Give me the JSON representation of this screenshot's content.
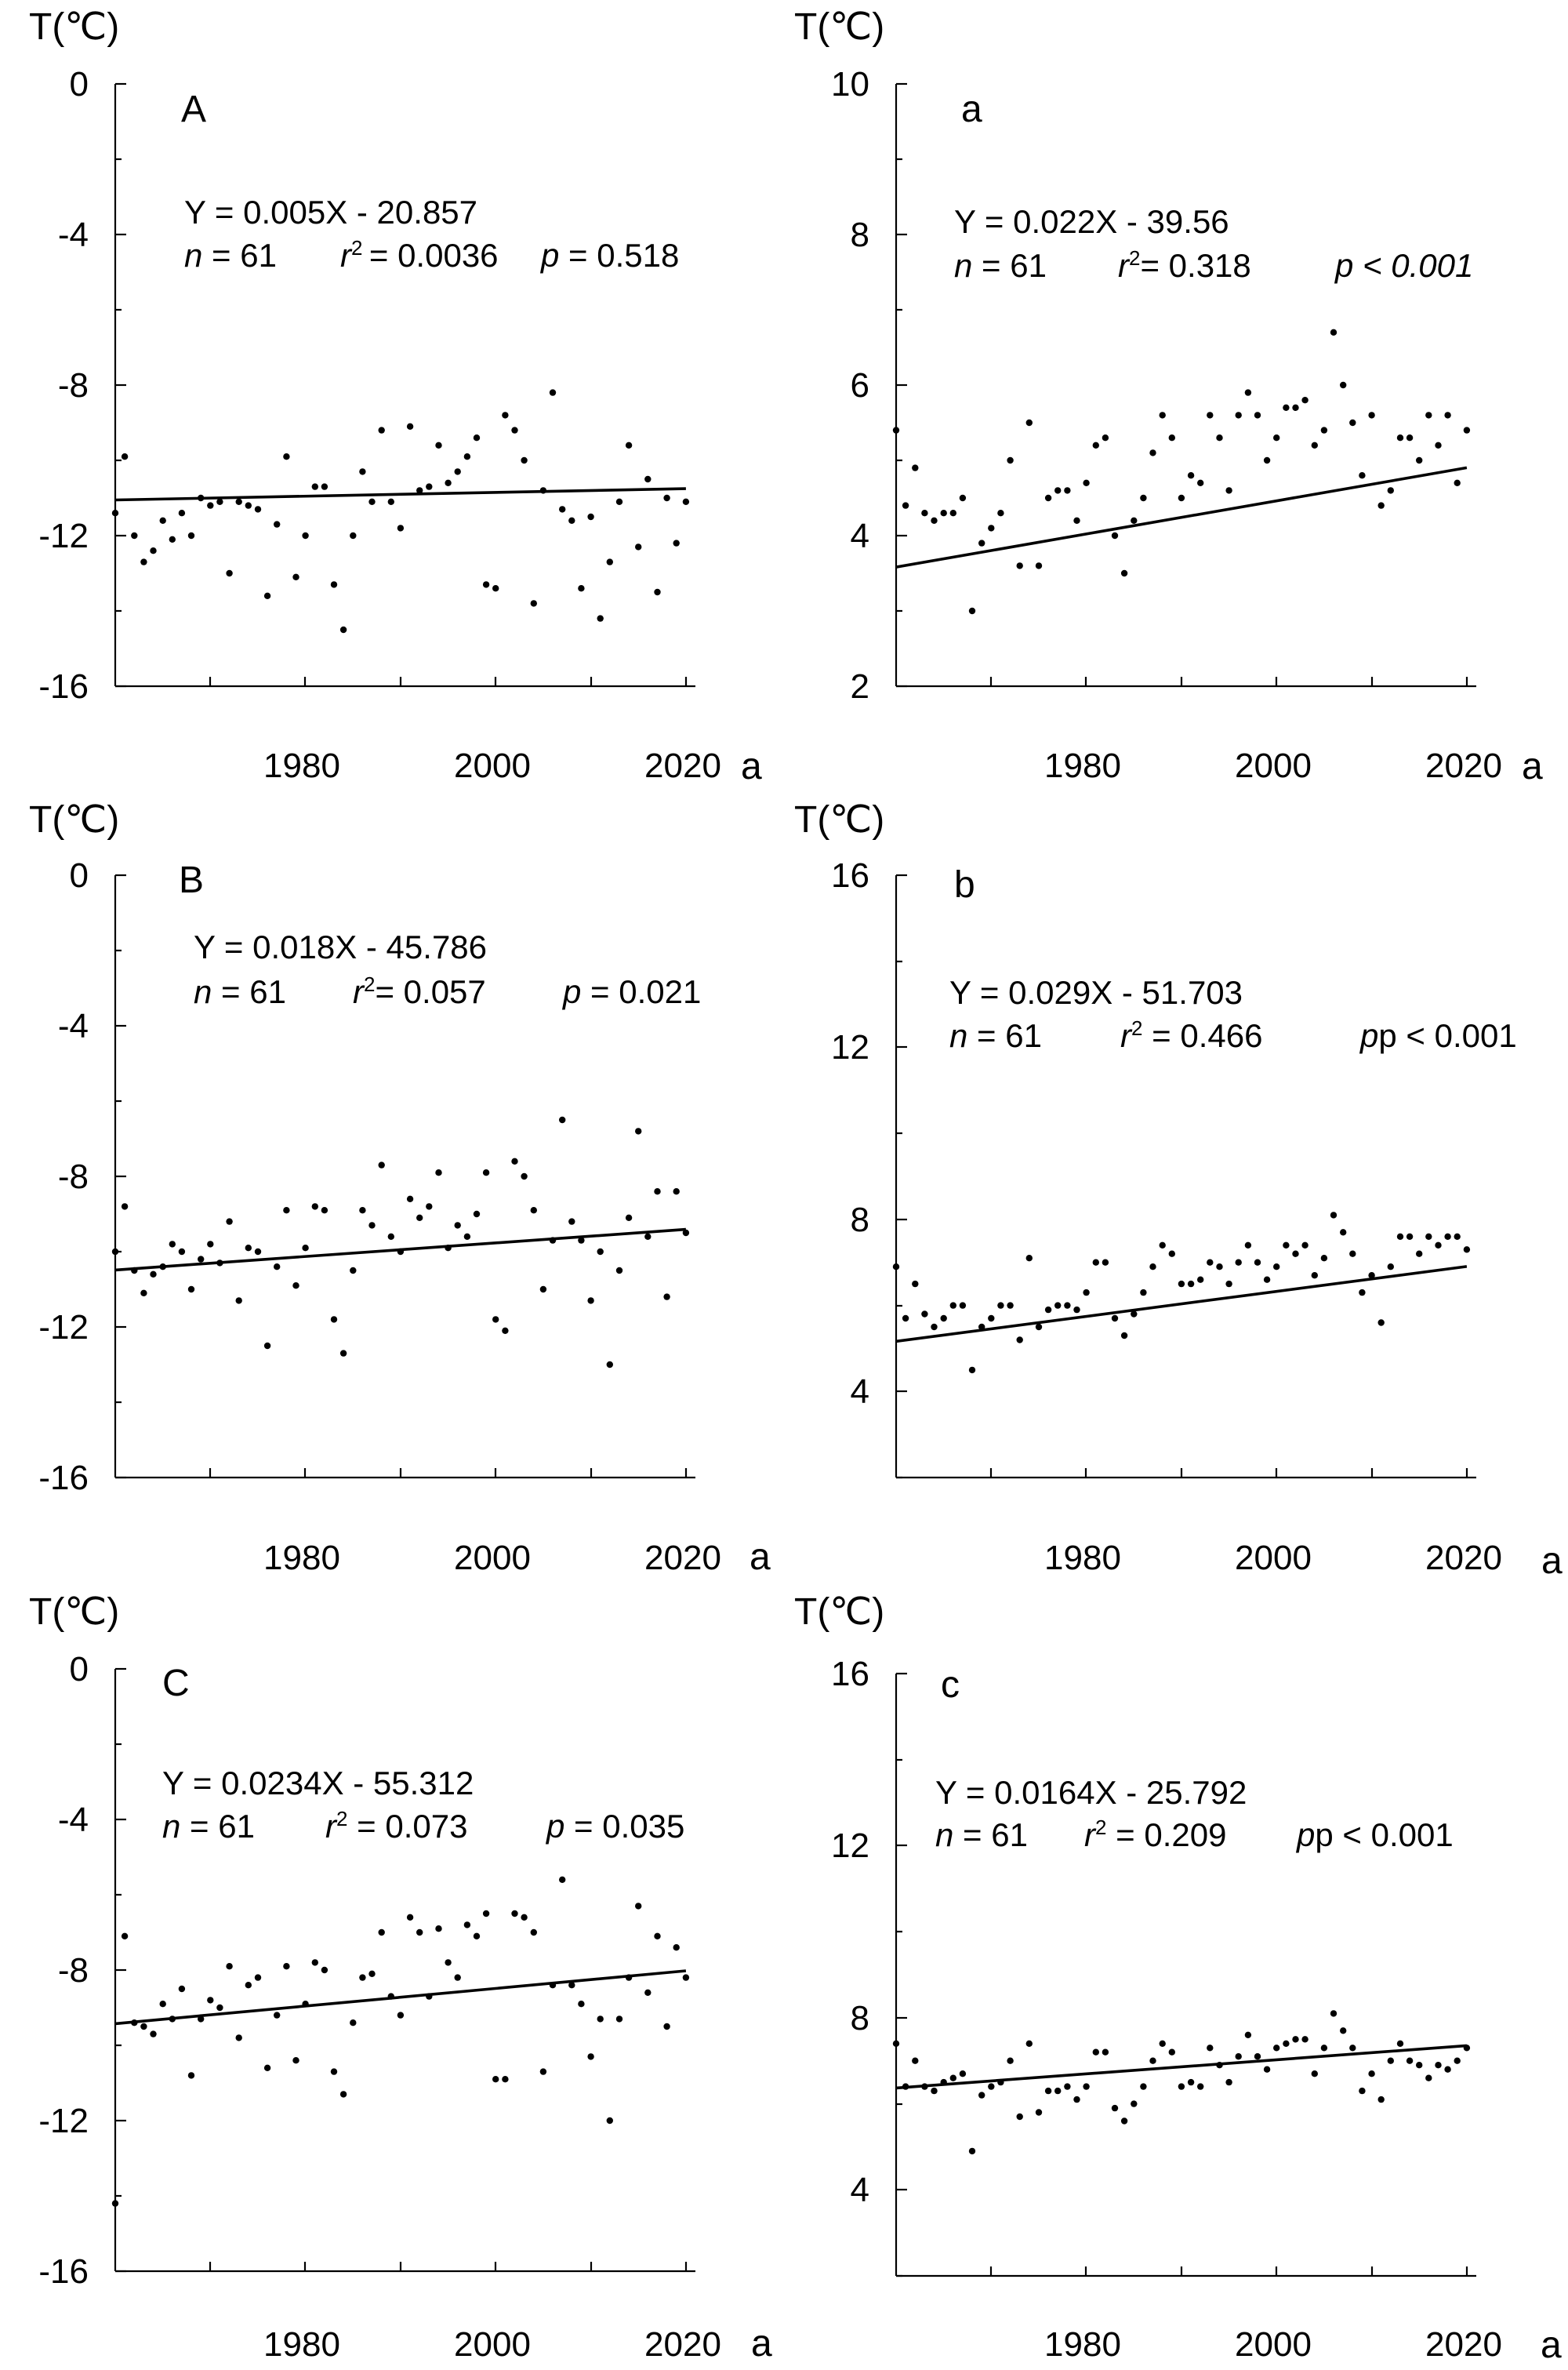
{
  "chart_data": [
    {
      "type": "scatter",
      "panel_label": "A",
      "ylabel": "T(℃)",
      "xlabel": "a",
      "x_ticks": [
        "1980",
        "2000",
        "2020"
      ],
      "y_ticks": [
        "0",
        "-4",
        "-8",
        "-12",
        "-16"
      ],
      "ylim": [
        -16,
        0
      ],
      "xlim": [
        1961,
        2022
      ],
      "equation": "Y = 0.005X - 20.857",
      "n_text": " = 61",
      "r2_text": " = 0.0036",
      "p_text": " = 0.518",
      "fit": {
        "slope": 0.005,
        "intercept": -20.857
      },
      "x_start": 1961,
      "values": [
        -11.4,
        -9.9,
        -12.0,
        -12.7,
        -12.4,
        -11.6,
        -12.1,
        -11.4,
        -12.0,
        -11.0,
        -11.2,
        -11.1,
        -13.0,
        -11.1,
        -11.2,
        -11.3,
        -13.6,
        -11.7,
        -9.9,
        -13.1,
        -12.0,
        -10.7,
        -10.7,
        -13.3,
        -14.5,
        -12.0,
        -10.3,
        -11.1,
        -9.2,
        -11.1,
        -11.8,
        -9.1,
        -10.8,
        -10.7,
        -9.6,
        -10.6,
        -10.3,
        -9.9,
        -9.4,
        -13.3,
        -13.4,
        -8.8,
        -9.2,
        -10.0,
        -13.8,
        -10.8,
        -8.2,
        -11.3,
        -11.6,
        -13.4,
        -11.5,
        -14.2,
        -12.7,
        -11.1,
        -9.6,
        -12.3,
        -10.5,
        -13.5,
        -11.0,
        -12.2,
        -11.1
      ]
    },
    {
      "type": "scatter",
      "panel_label": "a",
      "ylabel": "T(℃)",
      "xlabel": "a",
      "x_ticks": [
        "1980",
        "2000",
        "2020"
      ],
      "y_ticks": [
        "10",
        "8",
        "6",
        "4",
        "2"
      ],
      "ylim": [
        2,
        10
      ],
      "xlim": [
        1961,
        2022
      ],
      "equation": "Y = 0.022X - 39.56",
      "n_text": " = 61",
      "r2_text": "= 0.318",
      "p_text": "p < 0.001",
      "fit": {
        "slope": 0.022,
        "intercept": -39.56
      },
      "x_start": 1961,
      "values": [
        5.4,
        4.4,
        4.9,
        4.3,
        4.2,
        4.3,
        4.3,
        4.5,
        3.0,
        3.9,
        4.1,
        4.3,
        5.0,
        3.6,
        5.5,
        3.6,
        4.5,
        4.6,
        4.6,
        4.2,
        4.7,
        5.2,
        5.3,
        4.0,
        3.5,
        4.2,
        4.5,
        5.1,
        5.6,
        5.3,
        4.5,
        4.8,
        4.7,
        5.6,
        5.3,
        4.6,
        5.6,
        5.9,
        5.6,
        5.0,
        5.3,
        5.7,
        5.7,
        5.8,
        5.2,
        5.4,
        6.7,
        6.0,
        5.5,
        4.8,
        5.6,
        4.4,
        4.6,
        5.3,
        5.3,
        5.0,
        5.6,
        5.2,
        5.6,
        4.7,
        5.4
      ]
    },
    {
      "type": "scatter",
      "panel_label": "B",
      "ylabel": "T(℃)",
      "xlabel": "a",
      "x_ticks": [
        "1980",
        "2000",
        "2020"
      ],
      "y_ticks": [
        "0",
        "-4",
        "-8",
        "-12",
        "-16"
      ],
      "ylim": [
        -16,
        0
      ],
      "xlim": [
        1961,
        2022
      ],
      "equation": "Y = 0.018X - 45.786",
      "n_text": " = 61",
      "r2_text": "= 0.057",
      "p_text": " = 0.021",
      "fit": {
        "slope": 0.018,
        "intercept": -45.786
      },
      "x_start": 1961,
      "values": [
        -10.0,
        -8.8,
        -10.5,
        -11.1,
        -10.6,
        -10.4,
        -9.8,
        -10.0,
        -11.0,
        -10.2,
        -9.8,
        -10.3,
        -9.2,
        -11.3,
        -9.9,
        -10.0,
        -12.5,
        -10.4,
        -8.9,
        -10.9,
        -9.9,
        -8.8,
        -8.9,
        -11.8,
        -12.7,
        -10.5,
        -8.9,
        -9.3,
        -7.7,
        -9.6,
        -10.0,
        -8.6,
        -9.1,
        -8.8,
        -7.9,
        -9.9,
        -9.3,
        -9.6,
        -9.0,
        -7.9,
        -11.8,
        -12.1,
        -7.6,
        -8.0,
        -8.9,
        -11.0,
        -9.7,
        -6.5,
        -9.2,
        -9.7,
        -11.3,
        -10.0,
        -13.0,
        -10.5,
        -9.1,
        -6.8,
        -9.6,
        -8.4,
        -11.2,
        -8.4,
        -9.5
      ]
    },
    {
      "type": "scatter",
      "panel_label": "b",
      "ylabel": "T(℃)",
      "xlabel": "a",
      "x_ticks": [
        "1980",
        "2000",
        "2020"
      ],
      "y_ticks": [
        "16",
        "12",
        "8",
        "4"
      ],
      "ylim": [
        2,
        16
      ],
      "xlim": [
        1961,
        2022
      ],
      "equation": "Y = 0.029X - 51.703",
      "n_text": " = 61",
      "r2_text": " = 0.466",
      "p_text": "p < 0.001",
      "fit": {
        "slope": 0.029,
        "intercept": -51.703
      },
      "x_start": 1961,
      "values": [
        6.9,
        5.7,
        6.5,
        5.8,
        5.5,
        5.7,
        6.0,
        6.0,
        4.5,
        5.5,
        5.7,
        6.0,
        6.0,
        5.2,
        7.1,
        5.5,
        5.9,
        6.0,
        6.0,
        5.9,
        6.3,
        7.0,
        7.0,
        5.7,
        5.3,
        5.8,
        6.3,
        6.9,
        7.4,
        7.2,
        6.5,
        6.5,
        6.6,
        7.0,
        6.9,
        6.5,
        7.0,
        7.4,
        7.0,
        6.6,
        6.9,
        7.4,
        7.2,
        7.4,
        6.7,
        7.1,
        8.1,
        7.7,
        7.2,
        6.3,
        6.7,
        5.6,
        6.9,
        7.6,
        7.6,
        7.2,
        7.6,
        7.4,
        7.6,
        7.6,
        7.3
      ]
    },
    {
      "type": "scatter",
      "panel_label": "C",
      "ylabel": "T(℃)",
      "xlabel": "a",
      "x_ticks": [
        "1980",
        "2000",
        "2020"
      ],
      "y_ticks": [
        "0",
        "-4",
        "-8",
        "-12",
        "-16"
      ],
      "ylim": [
        -16,
        0
      ],
      "xlim": [
        1961,
        2022
      ],
      "equation": "Y = 0.0234X - 55.312",
      "n_text": " = 61",
      "r2_text": " = 0.073",
      "p_text": " = 0.035",
      "fit": {
        "slope": 0.0234,
        "intercept": -55.312
      },
      "x_start": 1961,
      "values": [
        -14.2,
        -7.1,
        -9.4,
        -9.5,
        -9.7,
        -8.9,
        -9.3,
        -8.5,
        -10.8,
        -9.3,
        -8.8,
        -9.0,
        -7.9,
        -9.8,
        -8.4,
        -8.2,
        -10.6,
        -9.2,
        -7.9,
        -10.4,
        -8.9,
        -7.8,
        -8.0,
        -10.7,
        -11.3,
        -9.4,
        -8.2,
        -8.1,
        -7.0,
        -8.7,
        -9.2,
        -6.6,
        -7.0,
        -8.7,
        -6.9,
        -7.8,
        -8.2,
        -6.8,
        -7.1,
        -6.5,
        -10.9,
        -10.9,
        -6.5,
        -6.6,
        -7.0,
        -10.7,
        -8.4,
        -5.6,
        -8.4,
        -8.9,
        -10.3,
        -9.3,
        -12.0,
        -9.3,
        -8.2,
        -6.3,
        -8.6,
        -7.1,
        -9.5,
        -7.4,
        -8.2
      ]
    },
    {
      "type": "scatter",
      "panel_label": "c",
      "ylabel": "T(℃)",
      "xlabel": "a",
      "x_ticks": [
        "1980",
        "2000",
        "2020"
      ],
      "y_ticks": [
        "16",
        "12",
        "8",
        "4"
      ],
      "ylim": [
        2,
        16
      ],
      "xlim": [
        1961,
        2022
      ],
      "equation": "Y = 0.0164X - 25.792",
      "n_text": " = 61",
      "r2_text": " = 0.209",
      "p_text": "p < 0.001",
      "fit": {
        "slope": 0.0164,
        "intercept": -25.792
      },
      "x_start": 1961,
      "values": [
        7.4,
        6.4,
        7.0,
        6.4,
        6.3,
        6.5,
        6.6,
        6.7,
        4.9,
        6.2,
        6.4,
        6.5,
        7.0,
        5.7,
        7.4,
        5.8,
        6.3,
        6.3,
        6.4,
        6.1,
        6.4,
        7.2,
        7.2,
        5.9,
        5.6,
        6.0,
        6.4,
        7.0,
        7.4,
        7.2,
        6.4,
        6.5,
        6.4,
        7.3,
        6.9,
        6.5,
        7.1,
        7.6,
        7.1,
        6.8,
        7.3,
        7.4,
        7.5,
        7.5,
        6.7,
        7.3,
        8.1,
        7.7,
        7.3,
        6.3,
        6.7,
        6.1,
        7.0,
        7.4,
        7.0,
        6.9,
        6.6,
        6.9,
        6.8,
        7.0,
        7.3
      ]
    }
  ]
}
